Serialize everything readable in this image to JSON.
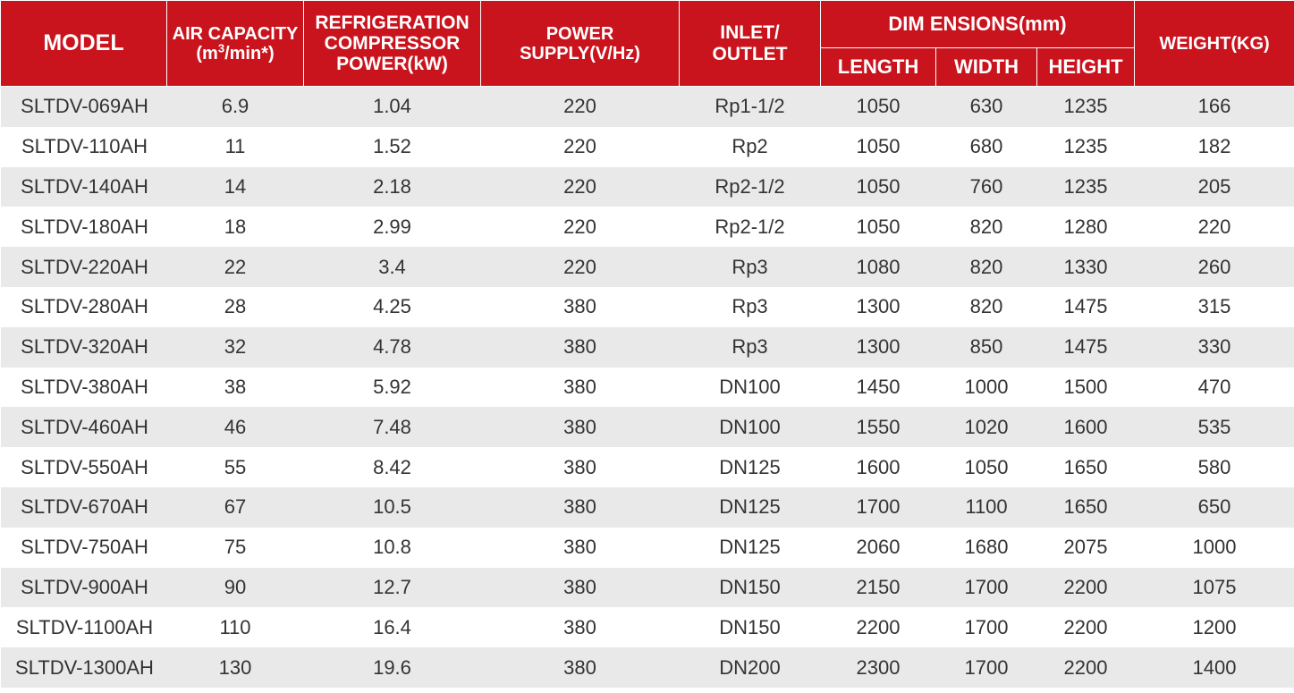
{
  "headers": {
    "model": "MODEL",
    "air_capacity_line1": "AIR CAPACITY",
    "air_capacity_line2_pre": "(m",
    "air_capacity_sup": "3",
    "air_capacity_line2_post": "/min*)",
    "compressor_line1": "REFRIGERATION",
    "compressor_line2": "COMPRESSOR",
    "compressor_line3": "POWER(kW)",
    "power_line1": "POWER",
    "power_line2": "SUPPLY(V/Hz)",
    "inlet_line1": "INLET/",
    "inlet_line2": "OUTLET",
    "dimensions": "DIM ENSIONS(mm)",
    "length": "LENGTH",
    "width": "WIDTH",
    "height": "HEIGHT",
    "weight": "WEIGHT(KG)"
  },
  "rows": [
    [
      "SLTDV-069AH",
      "6.9",
      "1.04",
      "220",
      "Rp1-1/2",
      "1050",
      "630",
      "1235",
      "166"
    ],
    [
      "SLTDV-110AH",
      "11",
      "1.52",
      "220",
      "Rp2",
      "1050",
      "680",
      "1235",
      "182"
    ],
    [
      "SLTDV-140AH",
      "14",
      "2.18",
      "220",
      "Rp2-1/2",
      "1050",
      "760",
      "1235",
      "205"
    ],
    [
      "SLTDV-180AH",
      "18",
      "2.99",
      "220",
      "Rp2-1/2",
      "1050",
      "820",
      "1280",
      "220"
    ],
    [
      "SLTDV-220AH",
      "22",
      "3.4",
      "220",
      "Rp3",
      "1080",
      "820",
      "1330",
      "260"
    ],
    [
      "SLTDV-280AH",
      "28",
      "4.25",
      "380",
      "Rp3",
      "1300",
      "820",
      "1475",
      "315"
    ],
    [
      "SLTDV-320AH",
      "32",
      "4.78",
      "380",
      "Rp3",
      "1300",
      "850",
      "1475",
      "330"
    ],
    [
      "SLTDV-380AH",
      "38",
      "5.92",
      "380",
      "DN100",
      "1450",
      "1000",
      "1500",
      "470"
    ],
    [
      "SLTDV-460AH",
      "46",
      "7.48",
      "380",
      "DN100",
      "1550",
      "1020",
      "1600",
      "535"
    ],
    [
      "SLTDV-550AH",
      "55",
      "8.42",
      "380",
      "DN125",
      "1600",
      "1050",
      "1650",
      "580"
    ],
    [
      "SLTDV-670AH",
      "67",
      "10.5",
      "380",
      "DN125",
      "1700",
      "1100",
      "1650",
      "650"
    ],
    [
      "SLTDV-750AH",
      "75",
      "10.8",
      "380",
      "DN125",
      "2060",
      "1680",
      "2075",
      "1000"
    ],
    [
      "SLTDV-900AH",
      "90",
      "12.7",
      "380",
      "DN150",
      "2150",
      "1700",
      "2200",
      "1075"
    ],
    [
      "SLTDV-1100AH",
      "110",
      "16.4",
      "380",
      "DN150",
      "2200",
      "1700",
      "2200",
      "1200"
    ],
    [
      "SLTDV-1300AH",
      "130",
      "19.6",
      "380",
      "DN200",
      "2300",
      "1700",
      "2200",
      "1400"
    ]
  ],
  "colors": {
    "header_bg": "#c9141e",
    "header_text": "#ffffff",
    "row_shaded": "#e9e9e9",
    "row_plain": "#ffffff",
    "cell_text": "#333333"
  }
}
